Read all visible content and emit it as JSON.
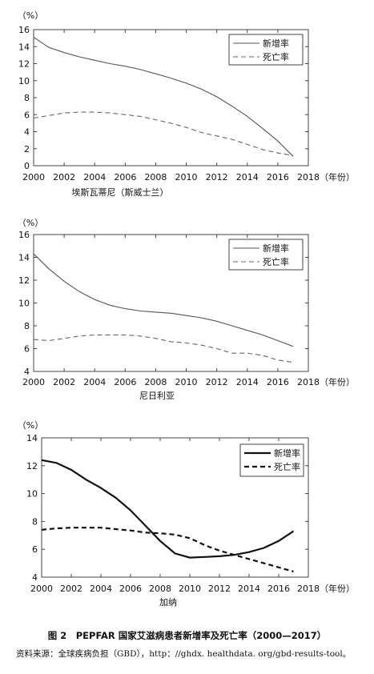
{
  "figure": {
    "caption": "图 2　PEPFAR 国家艾滋病患者新增率及死亡率（2000—2017）",
    "source": "资料来源：全球疾病负担（GBD），http：//ghdx. healthdata. org/gbd-results-tool。"
  },
  "chart_data": [
    {
      "type": "line",
      "title": "埃斯瓦蒂尼（斯威士兰）",
      "ylabel": "（%）",
      "xlabel": "（年份）",
      "ylim": [
        0,
        16
      ],
      "yticks": [
        0,
        2,
        4,
        6,
        8,
        10,
        12,
        14,
        16
      ],
      "xlim": [
        2000,
        2018
      ],
      "xticks": [
        2000,
        2002,
        2004,
        2006,
        2008,
        2010,
        2012,
        2014,
        2016,
        2018
      ],
      "legend_position": "top-right",
      "grid": false,
      "x": [
        2000,
        2001,
        2002,
        2003,
        2004,
        2005,
        2006,
        2007,
        2008,
        2009,
        2010,
        2011,
        2012,
        2013,
        2014,
        2015,
        2016,
        2017
      ],
      "series": [
        {
          "name": "新增率",
          "style": "solid",
          "values": [
            15.1,
            13.9,
            13.3,
            12.8,
            12.4,
            12.0,
            11.7,
            11.3,
            10.8,
            10.3,
            9.7,
            9.0,
            8.1,
            7.0,
            5.8,
            4.4,
            2.9,
            1.1
          ]
        },
        {
          "name": "死亡率",
          "style": "dashed",
          "values": [
            5.6,
            5.9,
            6.2,
            6.3,
            6.3,
            6.2,
            6.0,
            5.8,
            5.4,
            5.0,
            4.5,
            3.9,
            3.5,
            3.1,
            2.5,
            1.9,
            1.5,
            1.2
          ]
        }
      ]
    },
    {
      "type": "line",
      "title": "尼日利亚",
      "ylabel": "（%）",
      "xlabel": "（年份）",
      "ylim": [
        4,
        16
      ],
      "yticks": [
        4,
        6,
        8,
        10,
        12,
        14,
        16
      ],
      "xlim": [
        2000,
        2018
      ],
      "xticks": [
        2000,
        2002,
        2004,
        2006,
        2008,
        2010,
        2012,
        2014,
        2016,
        2018
      ],
      "legend_position": "top-right",
      "grid": false,
      "x": [
        2000,
        2001,
        2002,
        2003,
        2004,
        2005,
        2006,
        2007,
        2008,
        2009,
        2010,
        2011,
        2012,
        2013,
        2014,
        2015,
        2016,
        2017
      ],
      "series": [
        {
          "name": "新增率",
          "style": "solid",
          "values": [
            14.3,
            13.0,
            11.9,
            11.0,
            10.3,
            9.8,
            9.5,
            9.3,
            9.2,
            9.1,
            8.9,
            8.7,
            8.4,
            8.0,
            7.6,
            7.2,
            6.7,
            6.2
          ]
        },
        {
          "name": "死亡率",
          "style": "dashed",
          "values": [
            6.8,
            6.7,
            6.9,
            7.1,
            7.2,
            7.2,
            7.2,
            7.1,
            6.9,
            6.6,
            6.5,
            6.3,
            6.0,
            5.6,
            5.6,
            5.4,
            5.0,
            4.8
          ]
        }
      ]
    },
    {
      "type": "line",
      "title": "加纳",
      "ylabel": "（%）",
      "xlabel": "（年份）",
      "ylim": [
        4,
        14
      ],
      "yticks": [
        4,
        6,
        8,
        10,
        12,
        14
      ],
      "xlim": [
        2000,
        2018
      ],
      "xticks": [
        2000,
        2002,
        2004,
        2006,
        2008,
        2010,
        2012,
        2014,
        2016,
        2018
      ],
      "legend_position": "top-right",
      "grid": false,
      "x": [
        2000,
        2001,
        2002,
        2003,
        2004,
        2005,
        2006,
        2007,
        2008,
        2009,
        2010,
        2011,
        2012,
        2013,
        2014,
        2015,
        2016,
        2017
      ],
      "series": [
        {
          "name": "新增率",
          "style": "solid-bold",
          "values": [
            12.4,
            12.2,
            11.7,
            11.0,
            10.4,
            9.7,
            8.8,
            7.7,
            6.6,
            5.7,
            5.4,
            5.45,
            5.5,
            5.6,
            5.8,
            6.1,
            6.6,
            7.3
          ]
        },
        {
          "name": "死亡率",
          "style": "dashed-bold",
          "values": [
            7.4,
            7.5,
            7.55,
            7.55,
            7.55,
            7.45,
            7.35,
            7.2,
            7.15,
            7.05,
            6.8,
            6.3,
            5.9,
            5.6,
            5.3,
            5.0,
            4.7,
            4.4
          ]
        }
      ]
    }
  ]
}
